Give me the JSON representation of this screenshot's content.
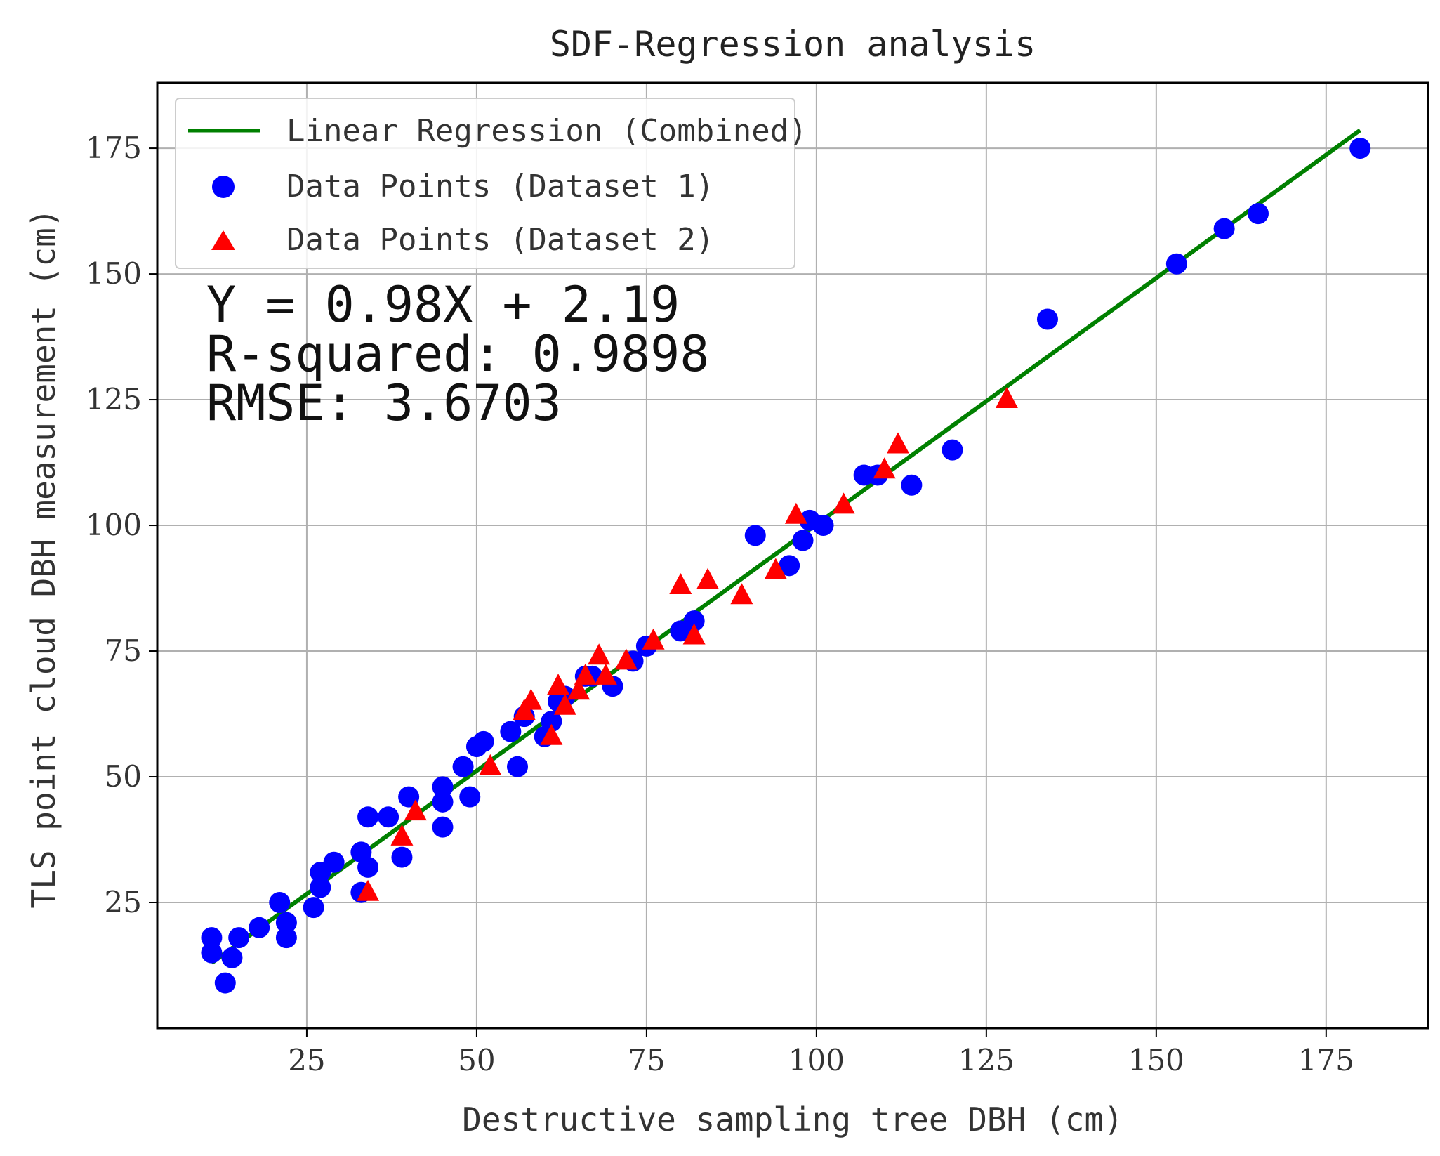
{
  "chart_data": {
    "type": "scatter",
    "title": "SDF-Regression analysis",
    "xlabel": "Destructive sampling tree DBH (cm)",
    "ylabel": "TLS point cloud DBH measurement (cm)",
    "xlim": [
      3,
      190
    ],
    "ylim": [
      0,
      188
    ],
    "xticks": [
      25,
      50,
      75,
      100,
      125,
      150,
      175
    ],
    "yticks": [
      25,
      50,
      75,
      100,
      125,
      150,
      175
    ],
    "grid": true,
    "legend_position": "top-left",
    "regression": {
      "name": "Linear Regression (Combined)",
      "color": "#008000",
      "slope": 0.98,
      "intercept": 2.19,
      "x_range": [
        11,
        180
      ]
    },
    "series": [
      {
        "name": "Data Points (Dataset 1)",
        "marker": "circle",
        "color": "#0000ff",
        "points": [
          [
            11,
            18
          ],
          [
            11,
            15
          ],
          [
            13,
            9
          ],
          [
            14,
            14
          ],
          [
            15,
            18
          ],
          [
            18,
            20
          ],
          [
            21,
            25
          ],
          [
            22,
            18
          ],
          [
            22,
            21
          ],
          [
            26,
            24
          ],
          [
            27,
            28
          ],
          [
            27,
            31
          ],
          [
            29,
            33
          ],
          [
            33,
            35
          ],
          [
            33,
            27
          ],
          [
            34,
            32
          ],
          [
            34,
            42
          ],
          [
            37,
            42
          ],
          [
            39,
            34
          ],
          [
            40,
            46
          ],
          [
            45,
            40
          ],
          [
            45,
            45
          ],
          [
            45,
            48
          ],
          [
            48,
            52
          ],
          [
            49,
            46
          ],
          [
            50,
            56
          ],
          [
            51,
            57
          ],
          [
            55,
            59
          ],
          [
            56,
            52
          ],
          [
            57,
            62
          ],
          [
            60,
            58
          ],
          [
            61,
            61
          ],
          [
            62,
            65
          ],
          [
            63,
            66
          ],
          [
            66,
            70
          ],
          [
            67,
            70
          ],
          [
            70,
            68
          ],
          [
            73,
            73
          ],
          [
            75,
            76
          ],
          [
            80,
            79
          ],
          [
            82,
            81
          ],
          [
            91,
            98
          ],
          [
            96,
            92
          ],
          [
            98,
            97
          ],
          [
            99,
            101
          ],
          [
            101,
            100
          ],
          [
            107,
            110
          ],
          [
            109,
            110
          ],
          [
            114,
            108
          ],
          [
            120,
            115
          ],
          [
            134,
            141
          ],
          [
            153,
            152
          ],
          [
            160,
            159
          ],
          [
            165,
            162
          ],
          [
            180,
            175
          ]
        ]
      },
      {
        "name": "Data Points (Dataset 2)",
        "marker": "triangle",
        "color": "#ff0000",
        "points": [
          [
            34,
            27
          ],
          [
            39,
            38
          ],
          [
            41,
            43
          ],
          [
            52,
            52
          ],
          [
            57,
            63
          ],
          [
            58,
            65
          ],
          [
            61,
            58
          ],
          [
            62,
            68
          ],
          [
            63,
            64
          ],
          [
            65,
            67
          ],
          [
            66,
            70
          ],
          [
            68,
            74
          ],
          [
            69,
            70
          ],
          [
            72,
            73
          ],
          [
            76,
            77
          ],
          [
            80,
            88
          ],
          [
            82,
            78
          ],
          [
            84,
            89
          ],
          [
            89,
            86
          ],
          [
            94,
            91
          ],
          [
            97,
            102
          ],
          [
            104,
            104
          ],
          [
            110,
            111
          ],
          [
            112,
            116
          ],
          [
            128,
            125
          ]
        ]
      }
    ],
    "annotations": {
      "equation": "Y = 0.98X + 2.19",
      "r_squared": "R-squared: 0.9898",
      "rmse": "RMSE: 3.6703"
    }
  }
}
